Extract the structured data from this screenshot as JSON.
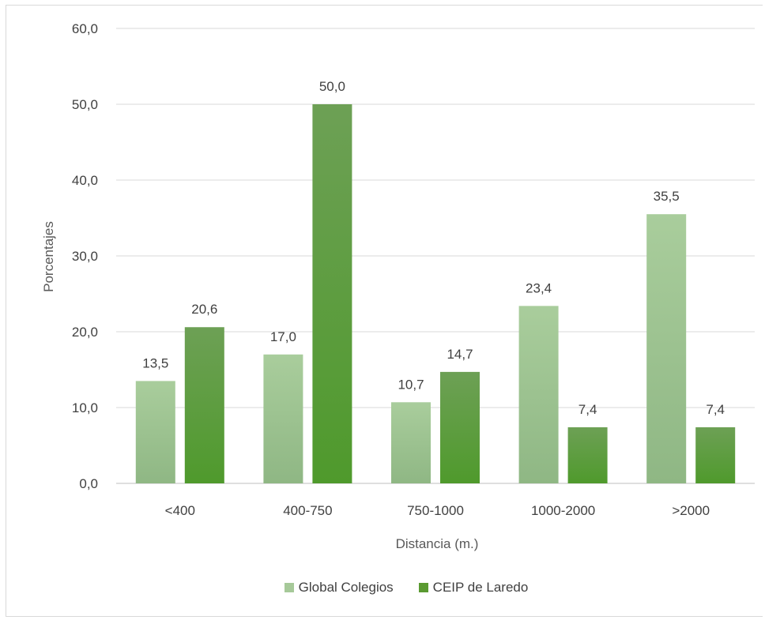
{
  "chart_data": {
    "type": "bar",
    "categories": [
      "<400",
      "400-750",
      "750-1000",
      "1000-2000",
      ">2000"
    ],
    "series": [
      {
        "name": "Global Colegios",
        "values": [
          13.5,
          17.0,
          10.7,
          23.4,
          35.5
        ],
        "labels": [
          "13,5",
          "17,0",
          "10,7",
          "23,4",
          "35,5"
        ],
        "color": "#a6c999"
      },
      {
        "name": "CEIP de Laredo",
        "values": [
          20.6,
          50.0,
          14.7,
          7.4,
          7.4
        ],
        "labels": [
          "20,6",
          "50,0",
          "14,7",
          "7,4",
          "7,4"
        ],
        "color": "#5a9a31"
      }
    ],
    "xlabel": "Distancia (m.)",
    "ylabel": "Porcentajes",
    "ylim": [
      0,
      60
    ],
    "yticks": [
      "0,0",
      "10,0",
      "20,0",
      "30,0",
      "40,0",
      "50,0",
      "60,0"
    ],
    "grid": true,
    "legend": "bottom"
  }
}
